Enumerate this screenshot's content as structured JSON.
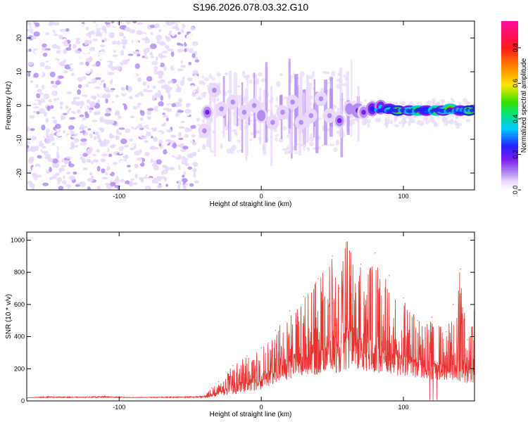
{
  "title": "S196.2026.078.03.32.G10",
  "colors": {
    "background": "#ffffff",
    "snr_line": "#e8322f",
    "spectrum_scale": [
      "#ffffff",
      "#e8d8fb",
      "#b48cf2",
      "#7a1ef0",
      "#2222ff",
      "#00c8ff",
      "#00e38a",
      "#36e000",
      "#ffe500",
      "#ff8c00",
      "#ff1a1a",
      "#ff0aa0"
    ]
  },
  "chart_data": [
    {
      "type": "heatmap",
      "title": "",
      "xlabel": "Height of straight line (km)",
      "ylabel": "Frequency (Hz)",
      "xlim": [
        -165,
        150
      ],
      "ylim": [
        -25,
        25
      ],
      "xticks": [
        -100,
        0,
        100
      ],
      "xtick_labels": [
        "-100",
        "0",
        "100"
      ],
      "yticks": [
        20,
        10,
        0,
        -10,
        -20
      ],
      "ytick_labels": [
        "20",
        "10",
        "0",
        "-10",
        "-20"
      ],
      "colorbar": {
        "label": "Normalized spectral amplitude",
        "range": [
          0,
          0.95
        ],
        "ticks": [
          0.0,
          0.2,
          0.4,
          0.6,
          0.8
        ],
        "tick_labels": [
          "0.0",
          "0.2",
          "0.4",
          "0.6",
          "0.8"
        ]
      },
      "noise_region": {
        "x_range": [
          -165,
          -45
        ],
        "freq_range": [
          -25,
          25
        ],
        "amplitude_range": [
          0.02,
          0.12
        ]
      },
      "signal_band": [
        {
          "x": -40,
          "freq": -7.5,
          "amp": 0.18
        },
        {
          "x": -38,
          "freq": -2,
          "amp": 0.22
        },
        {
          "x": -33,
          "freq": 4.5,
          "amp": 0.16
        },
        {
          "x": -28,
          "freq": -1,
          "amp": 0.15
        },
        {
          "x": -20,
          "freq": 1,
          "amp": 0.14
        },
        {
          "x": -12,
          "freq": -2,
          "amp": 0.15
        },
        {
          "x": -5,
          "freq": 0,
          "amp": 0.14
        },
        {
          "x": 0,
          "freq": -3,
          "amp": 0.2
        },
        {
          "x": 8,
          "freq": -5,
          "amp": 0.14
        },
        {
          "x": 15,
          "freq": -2,
          "amp": 0.15
        },
        {
          "x": 22,
          "freq": 1,
          "amp": 0.13
        },
        {
          "x": 28,
          "freq": -5,
          "amp": 0.18
        },
        {
          "x": 35,
          "freq": -3,
          "amp": 0.15
        },
        {
          "x": 42,
          "freq": 2,
          "amp": 0.16
        },
        {
          "x": 48,
          "freq": -3,
          "amp": 0.15
        },
        {
          "x": 55,
          "freq": -4.5,
          "amp": 0.22
        },
        {
          "x": 62,
          "freq": -1,
          "amp": 0.2
        },
        {
          "x": 68,
          "freq": -1.5,
          "amp": 0.3
        },
        {
          "x": 72,
          "freq": -2,
          "amp": 0.22
        },
        {
          "x": 78,
          "freq": -1,
          "amp": 0.34
        },
        {
          "x": 84,
          "freq": -0.5,
          "amp": 0.4
        },
        {
          "x": 90,
          "freq": -1,
          "amp": 0.55
        },
        {
          "x": 96,
          "freq": -1.5,
          "amp": 0.85
        },
        {
          "x": 104,
          "freq": -1.5,
          "amp": 0.6
        },
        {
          "x": 110,
          "freq": -1.5,
          "amp": 0.9
        },
        {
          "x": 116,
          "freq": -1.5,
          "amp": 0.55
        },
        {
          "x": 123,
          "freq": -1.5,
          "amp": 0.92
        },
        {
          "x": 128,
          "freq": -1.5,
          "amp": 0.6
        },
        {
          "x": 133,
          "freq": -1,
          "amp": 0.9
        },
        {
          "x": 140,
          "freq": -1.5,
          "amp": 0.55
        },
        {
          "x": 146,
          "freq": -1.5,
          "amp": 0.85
        }
      ]
    },
    {
      "type": "line",
      "title": "",
      "xlabel": "Height of straight line (km)",
      "ylabel": "SNR (10 * v/v)",
      "xlim": [
        -165,
        150
      ],
      "ylim": [
        0,
        1050
      ],
      "xticks": [
        -100,
        0,
        100
      ],
      "xtick_labels": [
        "-100",
        "0",
        "100"
      ],
      "yticks": [
        0,
        200,
        400,
        600,
        800,
        1000
      ],
      "ytick_labels": [
        "0",
        "200",
        "400",
        "600",
        "800",
        "1000"
      ],
      "series": [
        {
          "name": "SNR",
          "x": [
            -165,
            -150,
            -130,
            -110,
            -90,
            -70,
            -50,
            -40,
            -35,
            -30,
            -20,
            -10,
            0,
            5,
            10,
            20,
            30,
            40,
            50,
            55,
            60,
            70,
            80,
            90,
            100,
            110,
            120,
            130,
            135,
            140,
            145,
            150
          ],
          "y": [
            20,
            28,
            25,
            30,
            22,
            25,
            28,
            32,
            80,
            120,
            220,
            280,
            330,
            360,
            440,
            560,
            650,
            760,
            900,
            700,
            1050,
            850,
            920,
            780,
            640,
            500,
            520,
            430,
            600,
            820,
            380,
            670
          ],
          "envelope_floor": [
            20,
            20,
            20,
            20,
            20,
            20,
            20,
            20,
            25,
            30,
            40,
            60,
            70,
            90,
            110,
            130,
            150,
            160,
            180,
            170,
            190,
            190,
            170,
            160,
            150,
            140,
            130,
            130,
            120,
            120,
            110,
            110
          ]
        }
      ]
    }
  ]
}
